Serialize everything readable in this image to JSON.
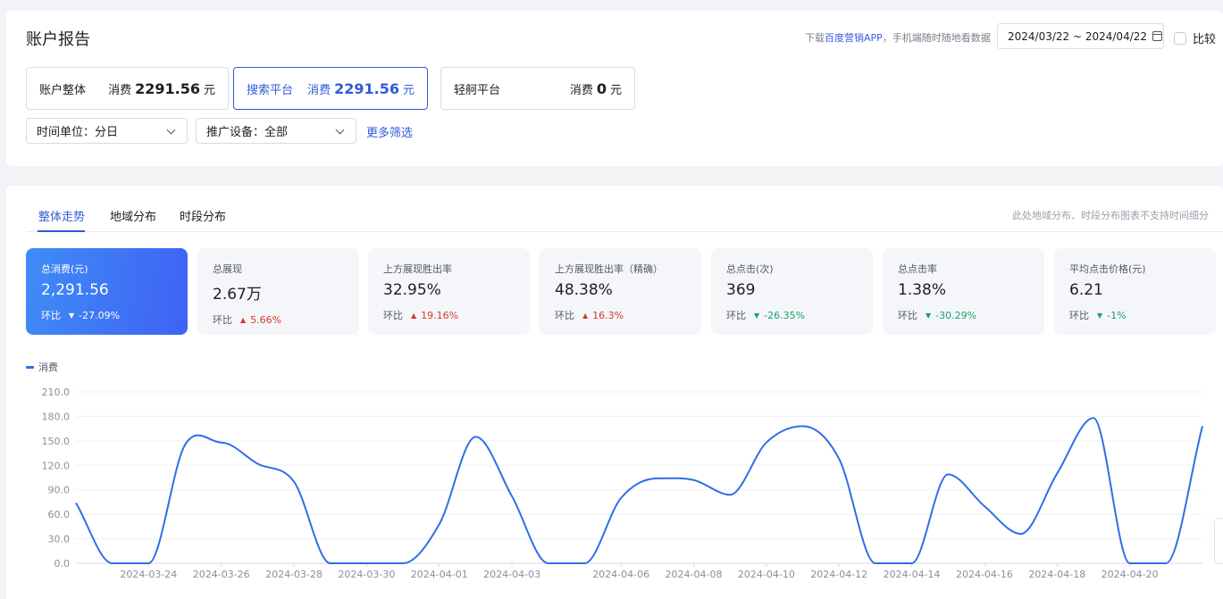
{
  "header": {
    "title": "账户报告",
    "promo_prefix": "下载",
    "promo_app": "百度营销APP",
    "promo_suffix": "，手机端随时随地看数据",
    "date_range": "2024/03/22 ~ 2024/04/22",
    "compare_label": "比较"
  },
  "accounts": [
    {
      "label": "账户整体",
      "spend_label": "消费",
      "amount": "2291.56",
      "unit": "元",
      "active": false
    },
    {
      "label": "搜索平台",
      "spend_label": "消费",
      "amount": "2291.56",
      "unit": "元",
      "active": true
    },
    {
      "label": "轻舸平台",
      "spend_label": "消费",
      "amount": "0",
      "unit": "元",
      "active": false
    }
  ],
  "filters": {
    "time_unit": "时间单位：分日",
    "device": "推广设备：全部",
    "more": "更多筛选"
  },
  "tabs": [
    {
      "label": "整体走势",
      "active": true
    },
    {
      "label": "地域分布",
      "active": false
    },
    {
      "label": "时段分布",
      "active": false
    }
  ],
  "tab_note": "此处地域分布、时段分布图表不支持时间细分",
  "metrics": [
    {
      "label": "总消费(元)",
      "value": "2,291.56",
      "cmp_label": "环比",
      "direction": "down",
      "change": "-27.09%",
      "active": true
    },
    {
      "label": "总展现",
      "value": "2.67万",
      "cmp_label": "环比",
      "direction": "up",
      "change": "5.66%",
      "active": false
    },
    {
      "label": "上方展现胜出率",
      "value": "32.95%",
      "cmp_label": "环比",
      "direction": "up",
      "change": "19.16%",
      "active": false
    },
    {
      "label": "上方展现胜出率（精确）",
      "value": "48.38%",
      "cmp_label": "环比",
      "direction": "up",
      "change": "16.3%",
      "active": false
    },
    {
      "label": "总点击(次)",
      "value": "369",
      "cmp_label": "环比",
      "direction": "down",
      "change": "-26.35%",
      "active": false
    },
    {
      "label": "总点击率",
      "value": "1.38%",
      "cmp_label": "环比",
      "direction": "down",
      "change": "-30.29%",
      "active": false
    },
    {
      "label": "平均点击价格(元)",
      "value": "6.21",
      "cmp_label": "环比",
      "direction": "down",
      "change": "-1%",
      "active": false
    }
  ],
  "chart_data": {
    "type": "line",
    "series": [
      {
        "name": "消费",
        "color": "#2f6ee8",
        "points": [
          [
            "2024-03-22",
            74
          ],
          [
            "2024-03-23",
            0
          ],
          [
            "2024-03-24",
            0
          ],
          [
            "2024-03-25",
            145
          ],
          [
            "2024-03-26",
            148
          ],
          [
            "2024-03-27",
            122
          ],
          [
            "2024-03-28",
            100
          ],
          [
            "2024-03-29",
            0
          ],
          [
            "2024-03-30",
            0
          ],
          [
            "2024-03-31",
            0
          ],
          [
            "2024-04-01",
            48
          ],
          [
            "2024-04-02",
            155
          ],
          [
            "2024-04-03",
            82
          ],
          [
            "2024-04-04",
            0
          ],
          [
            "2024-04-05",
            0
          ],
          [
            "2024-04-06",
            80
          ],
          [
            "2024-04-07",
            104
          ],
          [
            "2024-04-08",
            102
          ],
          [
            "2024-04-09",
            84
          ],
          [
            "2024-04-10",
            148
          ],
          [
            "2024-04-11",
            168
          ],
          [
            "2024-04-12",
            128
          ],
          [
            "2024-04-13",
            0
          ],
          [
            "2024-04-14",
            0
          ],
          [
            "2024-04-15",
            109
          ],
          [
            "2024-04-16",
            70
          ],
          [
            "2024-04-17",
            36
          ],
          [
            "2024-04-18",
            110
          ],
          [
            "2024-04-19",
            178
          ],
          [
            "2024-04-20",
            0
          ],
          [
            "2024-04-21",
            0
          ],
          [
            "2024-04-22",
            168
          ]
        ]
      }
    ],
    "x_tick_labels": [
      "2024-03-24",
      "2024-03-26",
      "2024-03-28",
      "2024-03-30",
      "2024-04-01",
      "2024-04-03",
      "2024-04-06",
      "2024-04-08",
      "2024-04-10",
      "2024-04-12",
      "2024-04-14",
      "2024-04-16",
      "2024-04-18",
      "2024-04-20"
    ],
    "y_ticks": [
      "0.0",
      "30.0",
      "60.0",
      "90.0",
      "120.0",
      "150.0",
      "180.0",
      "210.0"
    ],
    "ylim": [
      0,
      210
    ],
    "grid": true,
    "legend_position": "top-left"
  }
}
